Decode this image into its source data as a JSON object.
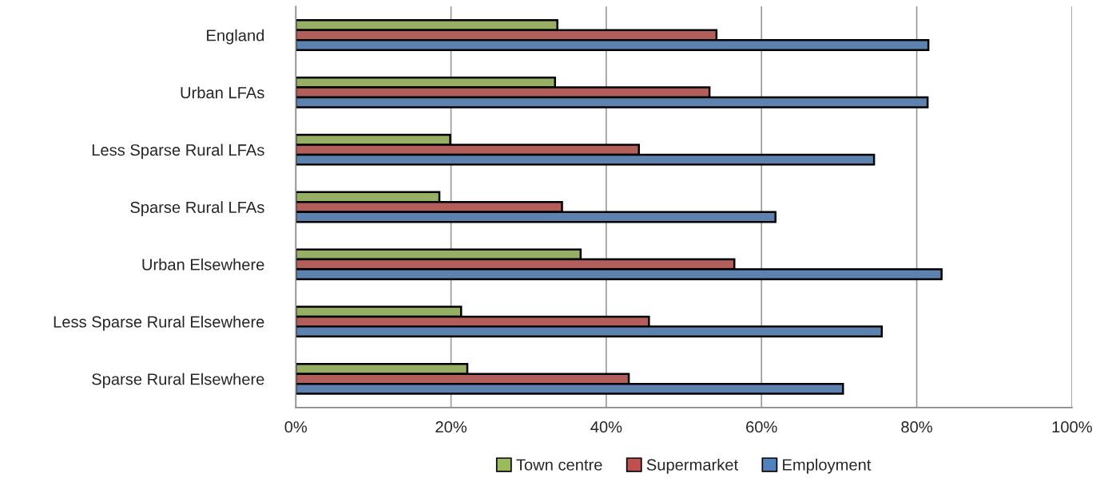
{
  "chart_data": {
    "type": "bar",
    "orientation": "horizontal",
    "categories": [
      "England",
      "Urban LFAs",
      "Less Sparse Rural LFAs",
      "Sparse Rural LFAs",
      "Urban Elsewhere",
      "Less Sparse Rural Elsewhere",
      "Sparse Rural Elsewhere"
    ],
    "series": [
      {
        "name": "Town centre",
        "color": "#9bbb59",
        "values": [
          33.7,
          33.4,
          19.9,
          18.5,
          36.7,
          21.3,
          22.1
        ]
      },
      {
        "name": "Supermarket",
        "color": "#c0504d",
        "values": [
          54.2,
          53.3,
          44.2,
          34.3,
          56.5,
          45.5,
          42.9
        ]
      },
      {
        "name": "Employment",
        "color": "#4f81bd",
        "values": [
          81.5,
          81.4,
          74.5,
          61.8,
          83.2,
          75.5,
          70.5
        ]
      }
    ],
    "xlim": [
      0,
      100
    ],
    "xticks": [
      {
        "value": 0,
        "label": "0%"
      },
      {
        "value": 20,
        "label": "20%"
      },
      {
        "value": 40,
        "label": "40%"
      },
      {
        "value": 60,
        "label": "60%"
      },
      {
        "value": 80,
        "label": "80%"
      },
      {
        "value": 100,
        "label": "100%"
      }
    ],
    "grid": "x",
    "legend": "bottom"
  }
}
